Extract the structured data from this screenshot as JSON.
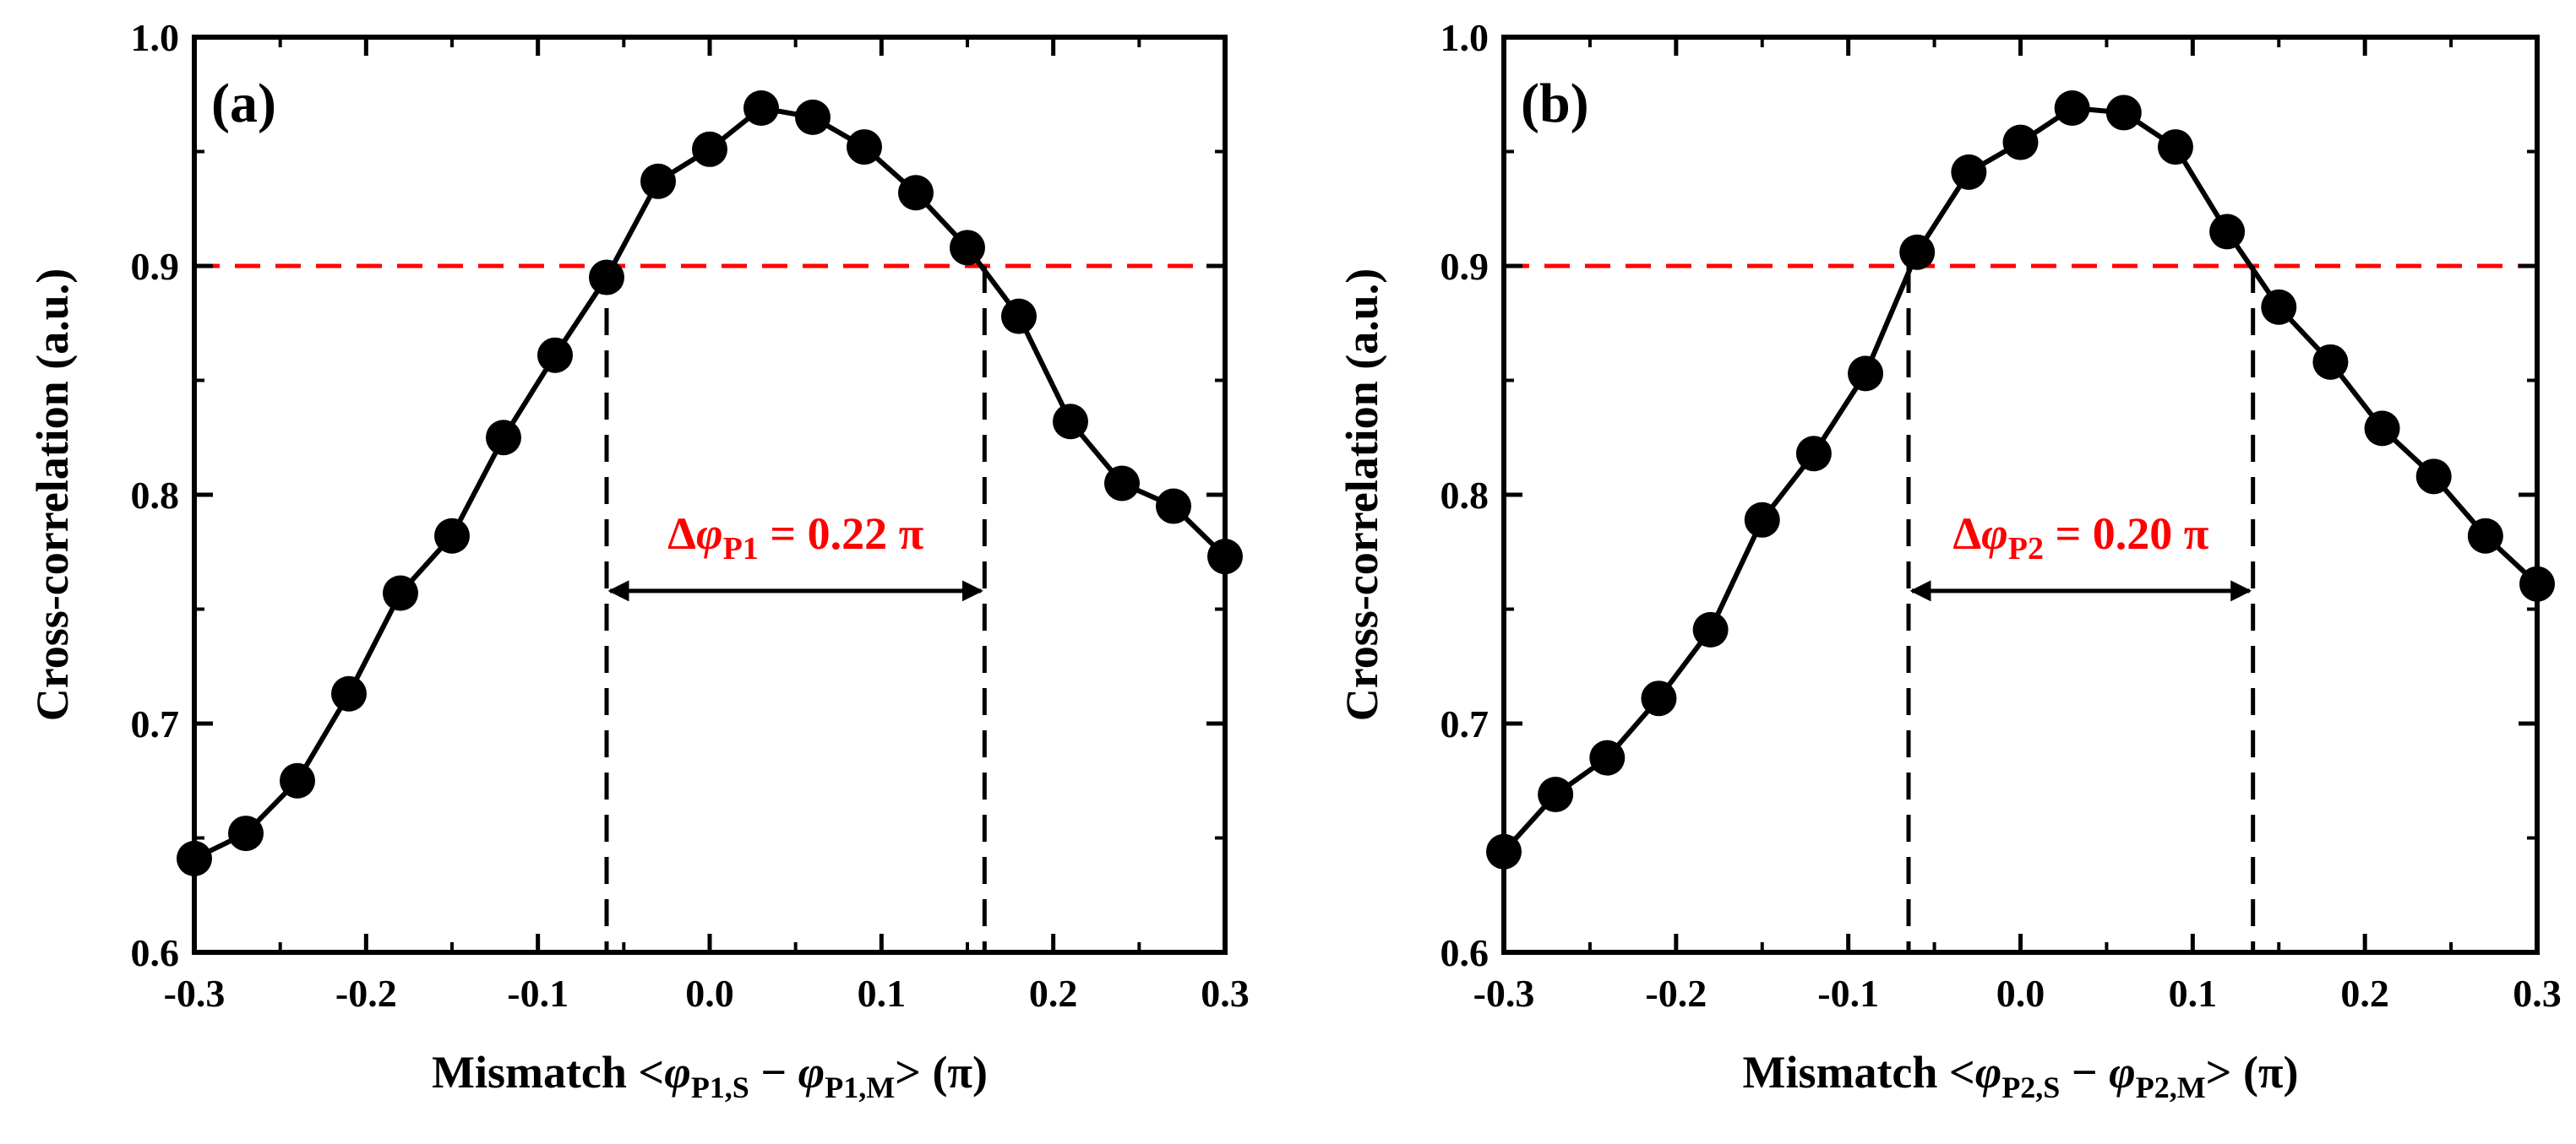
{
  "chart_data": [
    {
      "type": "line",
      "panel_label": "(a)",
      "x": [
        -0.3,
        -0.27,
        -0.24,
        -0.21,
        -0.18,
        -0.15,
        -0.12,
        -0.09,
        -0.06,
        -0.03,
        0.0,
        0.03,
        0.06,
        0.09,
        0.12,
        0.15,
        0.18,
        0.21,
        0.24,
        0.27,
        0.3
      ],
      "y": [
        0.641,
        0.652,
        0.675,
        0.713,
        0.757,
        0.782,
        0.825,
        0.861,
        0.895,
        0.937,
        0.951,
        0.969,
        0.965,
        0.952,
        0.932,
        0.908,
        0.878,
        0.832,
        0.805,
        0.795,
        0.773
      ],
      "xlim": [
        -0.3,
        0.3
      ],
      "ylim": [
        0.6,
        1.0
      ],
      "xticks": [
        -0.3,
        -0.2,
        -0.1,
        0.0,
        0.1,
        0.2,
        0.3
      ],
      "xtick_labels": [
        "-0.3",
        "-0.2",
        "-0.1",
        "0.0",
        "0.1",
        "0.2",
        "0.3"
      ],
      "yticks": [
        0.6,
        0.7,
        0.8,
        0.9,
        1.0
      ],
      "ytick_labels": [
        "0.6",
        "0.7",
        "0.8",
        "0.9",
        "1.0"
      ],
      "ylabel": "Cross-correlation (a.u.)",
      "xlabel": {
        "prefix": "Mismatch <",
        "phi1": "φ",
        "sub1": "P1,S",
        "minus": " − ",
        "phi2": "φ",
        "sub2": "P1,M",
        "suffix": "> (π)"
      },
      "threshold": 0.9,
      "bounds": [
        -0.06,
        0.16
      ],
      "arrow_y": 0.758,
      "annotation": {
        "delta": "Δ",
        "phi": "φ",
        "sub": "P1",
        "value": " = 0.22 π"
      },
      "colors": {
        "series": "#000000",
        "threshold": "#ff0000",
        "annotation": "#ff0000"
      }
    },
    {
      "type": "line",
      "panel_label": "(b)",
      "x": [
        -0.3,
        -0.27,
        -0.24,
        -0.21,
        -0.18,
        -0.15,
        -0.12,
        -0.09,
        -0.06,
        -0.03,
        0.0,
        0.03,
        0.06,
        0.09,
        0.12,
        0.15,
        0.18,
        0.21,
        0.24,
        0.27,
        0.3
      ],
      "y": [
        0.644,
        0.669,
        0.685,
        0.711,
        0.741,
        0.789,
        0.818,
        0.853,
        0.906,
        0.941,
        0.954,
        0.969,
        0.967,
        0.952,
        0.915,
        0.882,
        0.858,
        0.829,
        0.808,
        0.782,
        0.761
      ],
      "xlim": [
        -0.3,
        0.3
      ],
      "ylim": [
        0.6,
        1.0
      ],
      "xticks": [
        -0.3,
        -0.2,
        -0.1,
        0.0,
        0.1,
        0.2,
        0.3
      ],
      "xtick_labels": [
        "-0.3",
        "-0.2",
        "-0.1",
        "0.0",
        "0.1",
        "0.2",
        "0.3"
      ],
      "yticks": [
        0.6,
        0.7,
        0.8,
        0.9,
        1.0
      ],
      "ytick_labels": [
        "0.6",
        "0.7",
        "0.8",
        "0.9",
        "1.0"
      ],
      "ylabel": "Cross-correlation (a.u.)",
      "xlabel": {
        "prefix": "Mismatch <",
        "phi1": "φ",
        "sub1": "P2,S",
        "minus": " − ",
        "phi2": "φ",
        "sub2": "P2,M",
        "suffix": "> (π)"
      },
      "threshold": 0.9,
      "bounds": [
        -0.065,
        0.135
      ],
      "arrow_y": 0.758,
      "annotation": {
        "delta": "Δ",
        "phi": "φ",
        "sub": "P2",
        "value": " = 0.20 π"
      },
      "colors": {
        "series": "#000000",
        "threshold": "#ff0000",
        "annotation": "#ff0000"
      }
    }
  ]
}
